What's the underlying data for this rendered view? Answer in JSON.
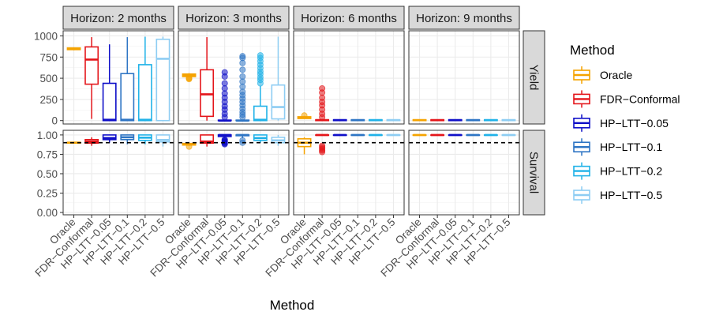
{
  "chart_data": {
    "type": "boxplot",
    "xlabel": "Method",
    "legend_title": "Method",
    "legend_position": "right",
    "methods": [
      "Oracle",
      "FDR−Conformal",
      "HP−LTT−0.05",
      "HP−LTT−0.1",
      "HP−LTT−0.2",
      "HP−LTT−0.5"
    ],
    "colors": {
      "Oracle": "#F5A300",
      "FDR−Conformal": "#E4151A",
      "HP−LTT−0.05": "#0F0FC8",
      "HP−LTT−0.1": "#2E75C4",
      "HP−LTT−0.2": "#20B2E8",
      "HP−LTT−0.5": "#8ECDF3"
    },
    "facet_columns": [
      "Horizon: 2 months",
      "Horizon: 3 months",
      "Horizon: 6 months",
      "Horizon: 9 months"
    ],
    "facet_rows": [
      {
        "label": "Yield",
        "ylim": [
          -40,
          1060
        ],
        "ticks": [
          0,
          250,
          500,
          750,
          1000
        ],
        "tick_labels": [
          "0",
          "250",
          "500",
          "750",
          "1000"
        ],
        "reference_line": null
      },
      {
        "label": "Survival",
        "ylim": [
          -0.03,
          1.06
        ],
        "ticks": [
          0,
          0.25,
          0.5,
          0.75,
          1.0
        ],
        "tick_labels": [
          "0.00",
          "0.25",
          "0.50",
          "0.75",
          "1.00"
        ],
        "reference_line": 0.9
      }
    ],
    "boxes": {
      "Yield": [
        [
          {
            "min": 830,
            "q1": 838,
            "median": 848,
            "q3": 858,
            "max": 865,
            "outliers": []
          },
          {
            "min": 20,
            "q1": 430,
            "median": 720,
            "q3": 870,
            "max": 985,
            "outliers": []
          },
          {
            "min": 0,
            "q1": 0,
            "median": 10,
            "q3": 440,
            "max": 900,
            "outliers": []
          },
          {
            "min": 0,
            "q1": 0,
            "median": 10,
            "q3": 555,
            "max": 985,
            "outliers": []
          },
          {
            "min": 0,
            "q1": 0,
            "median": 10,
            "q3": 660,
            "max": 990,
            "outliers": []
          },
          {
            "min": 0,
            "q1": 0,
            "median": 730,
            "q3": 960,
            "max": 990,
            "outliers": []
          }
        ],
        [
          {
            "min": 510,
            "q1": 520,
            "median": 535,
            "q3": 550,
            "max": 560,
            "outliers": [
              490,
              500,
              505
            ]
          },
          {
            "min": 0,
            "q1": 50,
            "median": 310,
            "q3": 600,
            "max": 985,
            "outliers": []
          },
          {
            "min": 0,
            "q1": 0,
            "median": 0,
            "q3": 5,
            "max": 10,
            "outliers": [
              40,
              80,
              130,
              170,
              220,
              270,
              320,
              380,
              440,
              520,
              570
            ]
          },
          {
            "min": 0,
            "q1": 0,
            "median": 0,
            "q3": 5,
            "max": 10,
            "outliers": [
              40,
              70,
              100,
              140,
              180,
              220,
              260,
              300,
              340,
              400,
              460,
              520,
              600,
              680,
              740,
              760
            ]
          },
          {
            "min": 0,
            "q1": 0,
            "median": 10,
            "q3": 170,
            "max": 410,
            "outliers": [
              440,
              480,
              510,
              550,
              580,
              620,
              660,
              700,
              740,
              770
            ]
          },
          {
            "min": 0,
            "q1": 20,
            "median": 160,
            "q3": 420,
            "max": 990,
            "outliers": []
          }
        ],
        [
          {
            "min": 20,
            "q1": 25,
            "median": 35,
            "q3": 45,
            "max": 55,
            "outliers": [
              60
            ]
          },
          {
            "min": 0,
            "q1": 0,
            "median": 5,
            "q3": 10,
            "max": 15,
            "outliers": [
              40,
              80,
              130,
              180,
              220,
              270,
              330,
              380
            ]
          },
          {
            "min": 0,
            "q1": 0,
            "median": 5,
            "q3": 10,
            "max": 15,
            "outliers": []
          },
          {
            "min": 0,
            "q1": 0,
            "median": 5,
            "q3": 10,
            "max": 15,
            "outliers": []
          },
          {
            "min": 0,
            "q1": 0,
            "median": 5,
            "q3": 10,
            "max": 15,
            "outliers": []
          },
          {
            "min": 0,
            "q1": 0,
            "median": 5,
            "q3": 10,
            "max": 15,
            "outliers": []
          }
        ],
        [
          {
            "min": 0,
            "q1": 0,
            "median": 5,
            "q3": 10,
            "max": 15,
            "outliers": []
          },
          {
            "min": 0,
            "q1": 0,
            "median": 5,
            "q3": 10,
            "max": 15,
            "outliers": []
          },
          {
            "min": 0,
            "q1": 0,
            "median": 5,
            "q3": 10,
            "max": 15,
            "outliers": []
          },
          {
            "min": 0,
            "q1": 0,
            "median": 5,
            "q3": 10,
            "max": 15,
            "outliers": []
          },
          {
            "min": 0,
            "q1": 0,
            "median": 5,
            "q3": 10,
            "max": 15,
            "outliers": []
          },
          {
            "min": 0,
            "q1": 0,
            "median": 5,
            "q3": 10,
            "max": 15,
            "outliers": []
          }
        ]
      ],
      "Survival": [
        [
          {
            "min": 0.89,
            "q1": 0.895,
            "median": 0.9,
            "q3": 0.905,
            "max": 0.91,
            "outliers": []
          },
          {
            "min": 0.86,
            "q1": 0.895,
            "median": 0.915,
            "q3": 0.94,
            "max": 0.97,
            "outliers": []
          },
          {
            "min": 0.9,
            "q1": 0.94,
            "median": 0.96,
            "q3": 1.0,
            "max": 1.0,
            "outliers": []
          },
          {
            "min": 0.88,
            "q1": 0.94,
            "median": 0.97,
            "q3": 1.0,
            "max": 1.0,
            "outliers": []
          },
          {
            "min": 0.88,
            "q1": 0.93,
            "median": 0.965,
            "q3": 1.0,
            "max": 1.0,
            "outliers": []
          },
          {
            "min": 0.85,
            "q1": 0.91,
            "median": 0.935,
            "q3": 1.0,
            "max": 1.0,
            "outliers": []
          }
        ],
        [
          {
            "min": 0.86,
            "q1": 0.87,
            "median": 0.88,
            "q3": 0.89,
            "max": 0.9,
            "outliers": [
              0.85
            ]
          },
          {
            "min": 0.85,
            "q1": 0.895,
            "median": 0.915,
            "q3": 1.0,
            "max": 1.0,
            "outliers": []
          },
          {
            "min": 0.96,
            "q1": 0.98,
            "median": 1.0,
            "q3": 1.0,
            "max": 1.0,
            "outliers": [
              0.93,
              0.92,
              0.91,
              0.9,
              0.89,
              0.88,
              0.94
            ]
          },
          {
            "min": 0.96,
            "q1": 0.99,
            "median": 1.0,
            "q3": 1.0,
            "max": 1.0,
            "outliers": [
              0.9,
              0.93
            ]
          },
          {
            "min": 0.9,
            "q1": 0.93,
            "median": 0.96,
            "q3": 1.0,
            "max": 1.0,
            "outliers": []
          },
          {
            "min": 0.86,
            "q1": 0.9,
            "median": 0.93,
            "q3": 0.97,
            "max": 1.0,
            "outliers": []
          }
        ],
        [
          {
            "min": 0.75,
            "q1": 0.85,
            "median": 0.9,
            "q3": 0.95,
            "max": 0.97,
            "outliers": []
          },
          {
            "min": 0.99,
            "q1": 1.0,
            "median": 1.0,
            "q3": 1.0,
            "max": 1.0,
            "outliers": [
              0.78,
              0.8,
              0.82,
              0.84,
              0.86
            ]
          },
          {
            "min": 1.0,
            "q1": 1.0,
            "median": 1.0,
            "q3": 1.0,
            "max": 1.0,
            "outliers": []
          },
          {
            "min": 1.0,
            "q1": 1.0,
            "median": 1.0,
            "q3": 1.0,
            "max": 1.0,
            "outliers": []
          },
          {
            "min": 1.0,
            "q1": 1.0,
            "median": 1.0,
            "q3": 1.0,
            "max": 1.0,
            "outliers": []
          },
          {
            "min": 1.0,
            "q1": 1.0,
            "median": 1.0,
            "q3": 1.0,
            "max": 1.0,
            "outliers": []
          }
        ],
        [
          {
            "min": 1.0,
            "q1": 1.0,
            "median": 1.0,
            "q3": 1.0,
            "max": 1.0,
            "outliers": []
          },
          {
            "min": 1.0,
            "q1": 1.0,
            "median": 1.0,
            "q3": 1.0,
            "max": 1.0,
            "outliers": []
          },
          {
            "min": 1.0,
            "q1": 1.0,
            "median": 1.0,
            "q3": 1.0,
            "max": 1.0,
            "outliers": []
          },
          {
            "min": 1.0,
            "q1": 1.0,
            "median": 1.0,
            "q3": 1.0,
            "max": 1.0,
            "outliers": []
          },
          {
            "min": 1.0,
            "q1": 1.0,
            "median": 1.0,
            "q3": 1.0,
            "max": 1.0,
            "outliers": []
          },
          {
            "min": 1.0,
            "q1": 1.0,
            "median": 1.0,
            "q3": 1.0,
            "max": 1.0,
            "outliers": []
          }
        ]
      ]
    }
  }
}
